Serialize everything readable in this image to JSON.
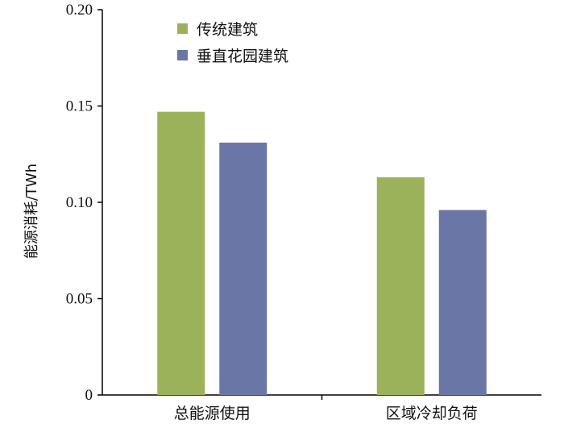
{
  "chart_data": {
    "type": "bar",
    "categories": [
      "总能源使用",
      "区域冷却负荷"
    ],
    "series": [
      {
        "name": "传统建筑",
        "values": [
          0.147,
          0.113
        ]
      },
      {
        "name": "垂直花园建筑",
        "values": [
          0.131,
          0.096
        ]
      }
    ],
    "colors": [
      "#9bb15a",
      "#6a77a6"
    ],
    "ylabel": "能源消耗/TWh",
    "xlabel": "",
    "ylim": [
      0,
      0.2
    ],
    "yticks": [
      "0",
      "0.05",
      "0.10",
      "0.15",
      "0.20"
    ],
    "ytick_values": [
      0,
      0.05,
      0.1,
      0.15,
      0.2
    ],
    "grid": false,
    "legend_position": "top-left"
  }
}
